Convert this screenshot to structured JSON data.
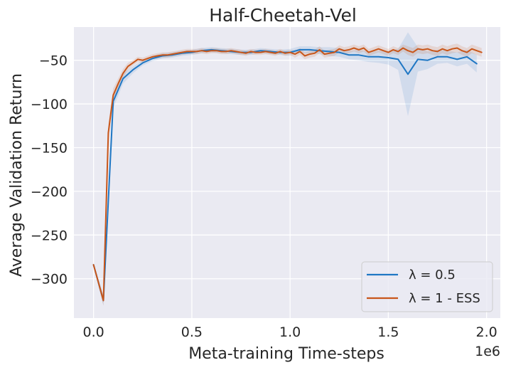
{
  "chart_data": {
    "type": "line",
    "title": "Half-Cheetah-Vel",
    "xlabel": "Meta-training Time-steps",
    "ylabel": "Average Validation Return",
    "x_offset_label": "1e6",
    "xlim": [
      -0.1,
      2.07
    ],
    "ylim": [
      -345,
      -12
    ],
    "x_ticks": [
      0.0,
      0.5,
      1.0,
      1.5,
      2.0
    ],
    "x_tick_labels": [
      "0.0",
      "0.5",
      "1.0",
      "1.5",
      "2.0"
    ],
    "y_ticks": [
      -300,
      -250,
      -200,
      -150,
      -100,
      -50
    ],
    "y_tick_labels": [
      "−300",
      "−250",
      "−200",
      "−150",
      "−100",
      "−50"
    ],
    "legend": {
      "position": "lower-right",
      "entries": [
        "λ = 0.5",
        "λ = 1 - ESS"
      ]
    },
    "grid": true,
    "series": [
      {
        "name": "λ = 0.5",
        "color": "#1f77c4",
        "x": [
          0.0,
          0.05,
          0.1,
          0.15,
          0.2,
          0.25,
          0.3,
          0.35,
          0.4,
          0.45,
          0.5,
          0.55,
          0.6,
          0.65,
          0.7,
          0.75,
          0.8,
          0.85,
          0.9,
          0.95,
          1.0,
          1.05,
          1.1,
          1.15,
          1.2,
          1.25,
          1.3,
          1.35,
          1.4,
          1.45,
          1.5,
          1.55,
          1.6,
          1.65,
          1.7,
          1.75,
          1.8,
          1.85,
          1.9,
          1.95
        ],
        "y": [
          -284,
          -325,
          -97,
          -71,
          -61,
          -53,
          -48,
          -45,
          -44,
          -42,
          -41,
          -39,
          -38,
          -39,
          -40,
          -41,
          -41,
          -39,
          -40,
          -41,
          -41,
          -38,
          -38,
          -39,
          -40,
          -41,
          -44,
          -44,
          -46,
          -46,
          -47,
          -49,
          -66,
          -49,
          -50,
          -46,
          -46,
          -49,
          -46,
          -54
        ],
        "band_halfwidth": [
          2,
          6,
          8,
          6,
          4,
          3,
          3,
          3,
          3,
          3,
          3,
          3,
          3,
          3,
          3,
          3,
          3,
          3,
          3,
          3,
          4,
          4,
          4,
          4,
          5,
          5,
          5,
          6,
          6,
          7,
          8,
          12,
          48,
          14,
          10,
          8,
          7,
          8,
          8,
          10
        ]
      },
      {
        "name": "λ = 1 - ESS",
        "color": "#c8561a",
        "x": [
          0.0,
          0.05,
          0.075,
          0.1,
          0.125,
          0.15,
          0.175,
          0.2,
          0.225,
          0.25,
          0.275,
          0.3,
          0.325,
          0.35,
          0.375,
          0.4,
          0.425,
          0.45,
          0.475,
          0.5,
          0.525,
          0.55,
          0.575,
          0.6,
          0.625,
          0.65,
          0.675,
          0.7,
          0.725,
          0.75,
          0.775,
          0.8,
          0.825,
          0.85,
          0.875,
          0.9,
          0.925,
          0.95,
          0.975,
          1.0,
          1.025,
          1.05,
          1.075,
          1.1,
          1.125,
          1.15,
          1.175,
          1.2,
          1.225,
          1.25,
          1.275,
          1.3,
          1.325,
          1.35,
          1.375,
          1.4,
          1.425,
          1.45,
          1.475,
          1.5,
          1.525,
          1.55,
          1.575,
          1.6,
          1.625,
          1.65,
          1.675,
          1.7,
          1.725,
          1.75,
          1.775,
          1.8,
          1.825,
          1.85,
          1.875,
          1.9,
          1.925,
          1.95,
          1.975
        ],
        "y": [
          -284,
          -325,
          -133,
          -90,
          -77,
          -65,
          -57,
          -53,
          -49,
          -50,
          -48,
          -46,
          -45,
          -44,
          -44,
          -43,
          -42,
          -41,
          -40,
          -40,
          -40,
          -39,
          -40,
          -39,
          -39,
          -40,
          -40,
          -39,
          -40,
          -41,
          -42,
          -40,
          -41,
          -41,
          -40,
          -41,
          -42,
          -40,
          -42,
          -41,
          -43,
          -40,
          -45,
          -43,
          -42,
          -38,
          -43,
          -42,
          -41,
          -37,
          -39,
          -38,
          -36,
          -38,
          -36,
          -41,
          -39,
          -37,
          -39,
          -41,
          -38,
          -40,
          -36,
          -39,
          -41,
          -37,
          -38,
          -37,
          -39,
          -40,
          -37,
          -39,
          -37,
          -36,
          -39,
          -41,
          -37,
          -39,
          -41
        ],
        "band_halfwidth": [
          2,
          6,
          10,
          8,
          6,
          5,
          4,
          3,
          3,
          3,
          3,
          3,
          3,
          3,
          3,
          3,
          3,
          3,
          3,
          3,
          3,
          3,
          3,
          3,
          3,
          3,
          3,
          3,
          3,
          3,
          3,
          3,
          3,
          3,
          3,
          3,
          3,
          3,
          3,
          3,
          4,
          4,
          4,
          4,
          4,
          4,
          4,
          4,
          4,
          4,
          4,
          4,
          4,
          4,
          4,
          4,
          4,
          4,
          4,
          4,
          4,
          4,
          4,
          5,
          5,
          5,
          5,
          5,
          5,
          5,
          5,
          5,
          5,
          5,
          5,
          5,
          5,
          5,
          5
        ]
      }
    ]
  }
}
